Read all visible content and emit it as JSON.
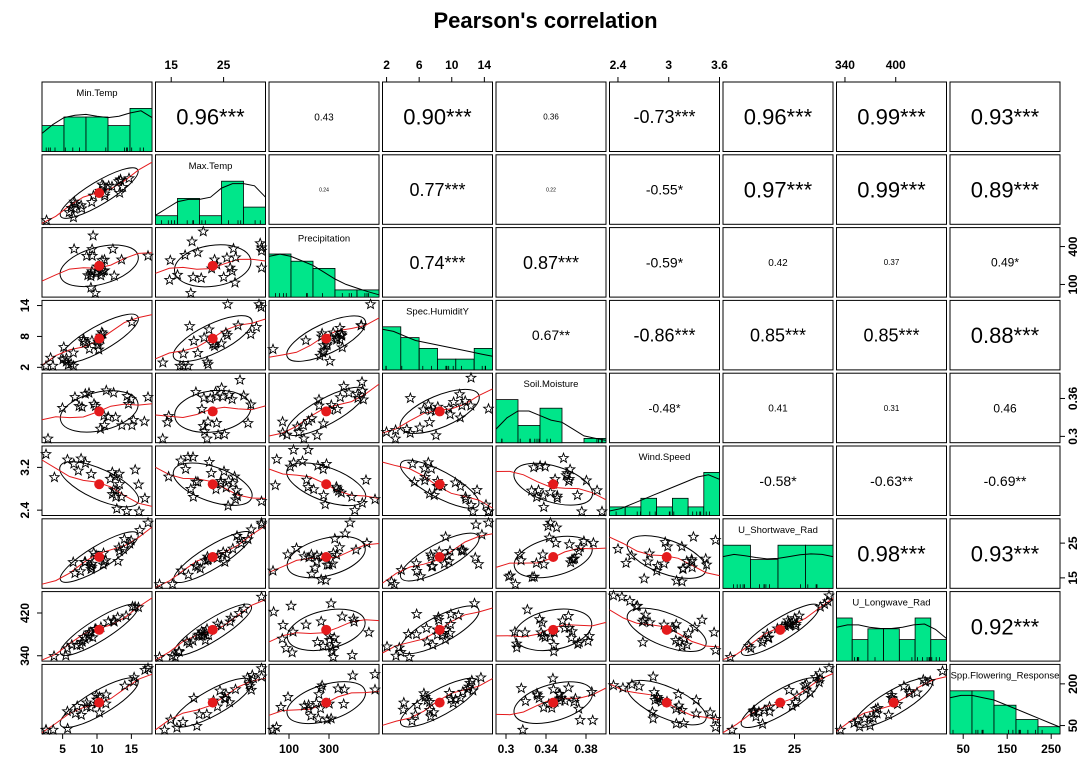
{
  "chart_data": {
    "type": "scatter-matrix",
    "title": "Pearson's correlation",
    "variables": [
      {
        "name": "Min.Temp",
        "range": [
          2,
          18
        ],
        "ticks": [
          5,
          10,
          15
        ],
        "hist": [
          3,
          4,
          4,
          3,
          5
        ],
        "density": [
          0.4,
          0.6,
          0.75,
          0.8,
          0.82,
          0.78,
          0.75,
          0.78,
          0.85,
          0.9,
          0.75
        ]
      },
      {
        "name": "Max.Temp",
        "range": [
          12,
          33
        ],
        "ticks": [
          15,
          25
        ],
        "hist": [
          1,
          3,
          1,
          5,
          2
        ],
        "density": [
          0.2,
          0.35,
          0.5,
          0.55,
          0.55,
          0.6,
          0.8,
          0.9,
          0.9,
          0.85,
          0.6
        ]
      },
      {
        "name": "Precipitation",
        "range": [
          0,
          550
        ],
        "ticks": [
          100,
          300
        ],
        "tick_labels_right": [
          100,
          400
        ],
        "hist": [
          6,
          5,
          4,
          1,
          1
        ],
        "density": [
          0.9,
          0.95,
          0.9,
          0.8,
          0.7,
          0.55,
          0.4,
          0.28,
          0.2,
          0.12,
          0.05
        ]
      },
      {
        "name": "Spec.HumiditY",
        "range": [
          1.5,
          15
        ],
        "ticks": [
          2,
          6,
          10,
          14
        ],
        "tick_labels_left": [
          2,
          8,
          14
        ],
        "hist": [
          4,
          3,
          2,
          1,
          1,
          2
        ],
        "density": [
          0.9,
          0.85,
          0.75,
          0.65,
          0.6,
          0.55,
          0.5,
          0.45,
          0.4,
          0.35,
          0.3
        ]
      },
      {
        "name": "Soil.Moisture",
        "range": [
          0.29,
          0.4
        ],
        "ticks": [
          0.3,
          0.34,
          0.38
        ],
        "tick_labels_right": [
          0.3,
          0.36
        ],
        "hist": [
          5,
          2,
          4,
          0,
          0.5
        ],
        "density": [
          0.3,
          0.55,
          0.7,
          0.7,
          0.6,
          0.5,
          0.45,
          0.3,
          0.15,
          0.1,
          0.05
        ]
      },
      {
        "name": "Wind.Speed",
        "range": [
          2.3,
          3.6
        ],
        "ticks": [
          2.4,
          3.0,
          3.6
        ],
        "tick_labels_left": [
          2.4,
          3.2
        ],
        "hist": [
          1,
          1,
          2,
          1,
          2,
          1,
          5
        ],
        "density": [
          0.1,
          0.15,
          0.25,
          0.35,
          0.45,
          0.55,
          0.65,
          0.75,
          0.85,
          0.9,
          0.8
        ]
      },
      {
        "name": "U_Shortwave_Rad",
        "range": [
          12,
          32
        ],
        "ticks": [
          15,
          25
        ],
        "tick_labels_right": [
          15,
          25
        ],
        "hist": [
          3,
          2,
          3,
          3
        ],
        "density": [
          0.7,
          0.75,
          0.72,
          0.68,
          0.65,
          0.66,
          0.7,
          0.74,
          0.76,
          0.75,
          0.7
        ]
      },
      {
        "name": "U_Longwave_Rad",
        "range": [
          330,
          460
        ],
        "ticks": [
          340,
          400
        ],
        "tick_labels_left": [
          340,
          420
        ],
        "hist": [
          4,
          2,
          3,
          3,
          2,
          4,
          2
        ],
        "density": [
          0.75,
          0.8,
          0.8,
          0.75,
          0.72,
          0.72,
          0.75,
          0.8,
          0.82,
          0.7,
          0.5
        ]
      },
      {
        "name": "Spp.Flowering_Response",
        "range": [
          20,
          270
        ],
        "ticks": [
          50,
          150,
          250
        ],
        "tick_labels_right": [
          50,
          200
        ],
        "hist": [
          3,
          3,
          2,
          1,
          0.5
        ],
        "density": [
          0.8,
          0.85,
          0.85,
          0.8,
          0.75,
          0.65,
          0.55,
          0.45,
          0.35,
          0.25,
          0.15
        ]
      }
    ],
    "correlations": [
      [
        "0.96***",
        "0.43",
        "0.90***",
        "0.36",
        "-0.73***",
        "0.96***",
        "0.99***",
        "0.93***"
      ],
      [
        "0.24",
        "0.77***",
        "0.22",
        "-0.55*",
        "0.97***",
        "0.99***",
        "0.89***"
      ],
      [
        "0.74***",
        "0.87***",
        "-0.59*",
        "0.42",
        "0.37",
        "0.49*"
      ],
      [
        "0.67**",
        "-0.86***",
        "0.85***",
        "0.85***",
        "0.88***"
      ],
      [
        "-0.48*",
        "0.41",
        "0.31",
        "0.46"
      ],
      [
        "-0.58*",
        "-0.63**",
        "-0.69**"
      ],
      [
        "0.98***",
        "0.93***"
      ],
      [
        "0.92***"
      ]
    ],
    "scatter_style": "star points with ellipse, loess line and mean point",
    "colors": {
      "hist_fill": "#00E68A",
      "smooth_line": "#E41A1C",
      "mean_point": "#E41A1C",
      "points": "#000000",
      "ellipse": "#000000"
    }
  }
}
